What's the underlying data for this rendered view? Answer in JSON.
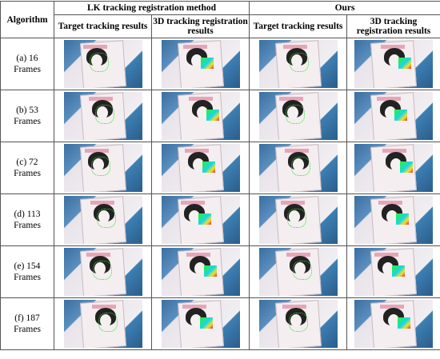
{
  "table": {
    "header": {
      "first": "Algorithm",
      "groups": [
        "LK tracking registration method",
        "Ours"
      ],
      "columns": [
        "Target tracking results",
        "3D tracking registration results",
        "Target tracking results",
        "3D tracking registration results"
      ]
    },
    "rows": [
      "(a) 16 Frames",
      "(b) 53 Frames",
      "(c) 72 Frames",
      "(d) 113 Frames",
      "(e) 154 Frames",
      "(f) 187 Frames"
    ]
  }
}
